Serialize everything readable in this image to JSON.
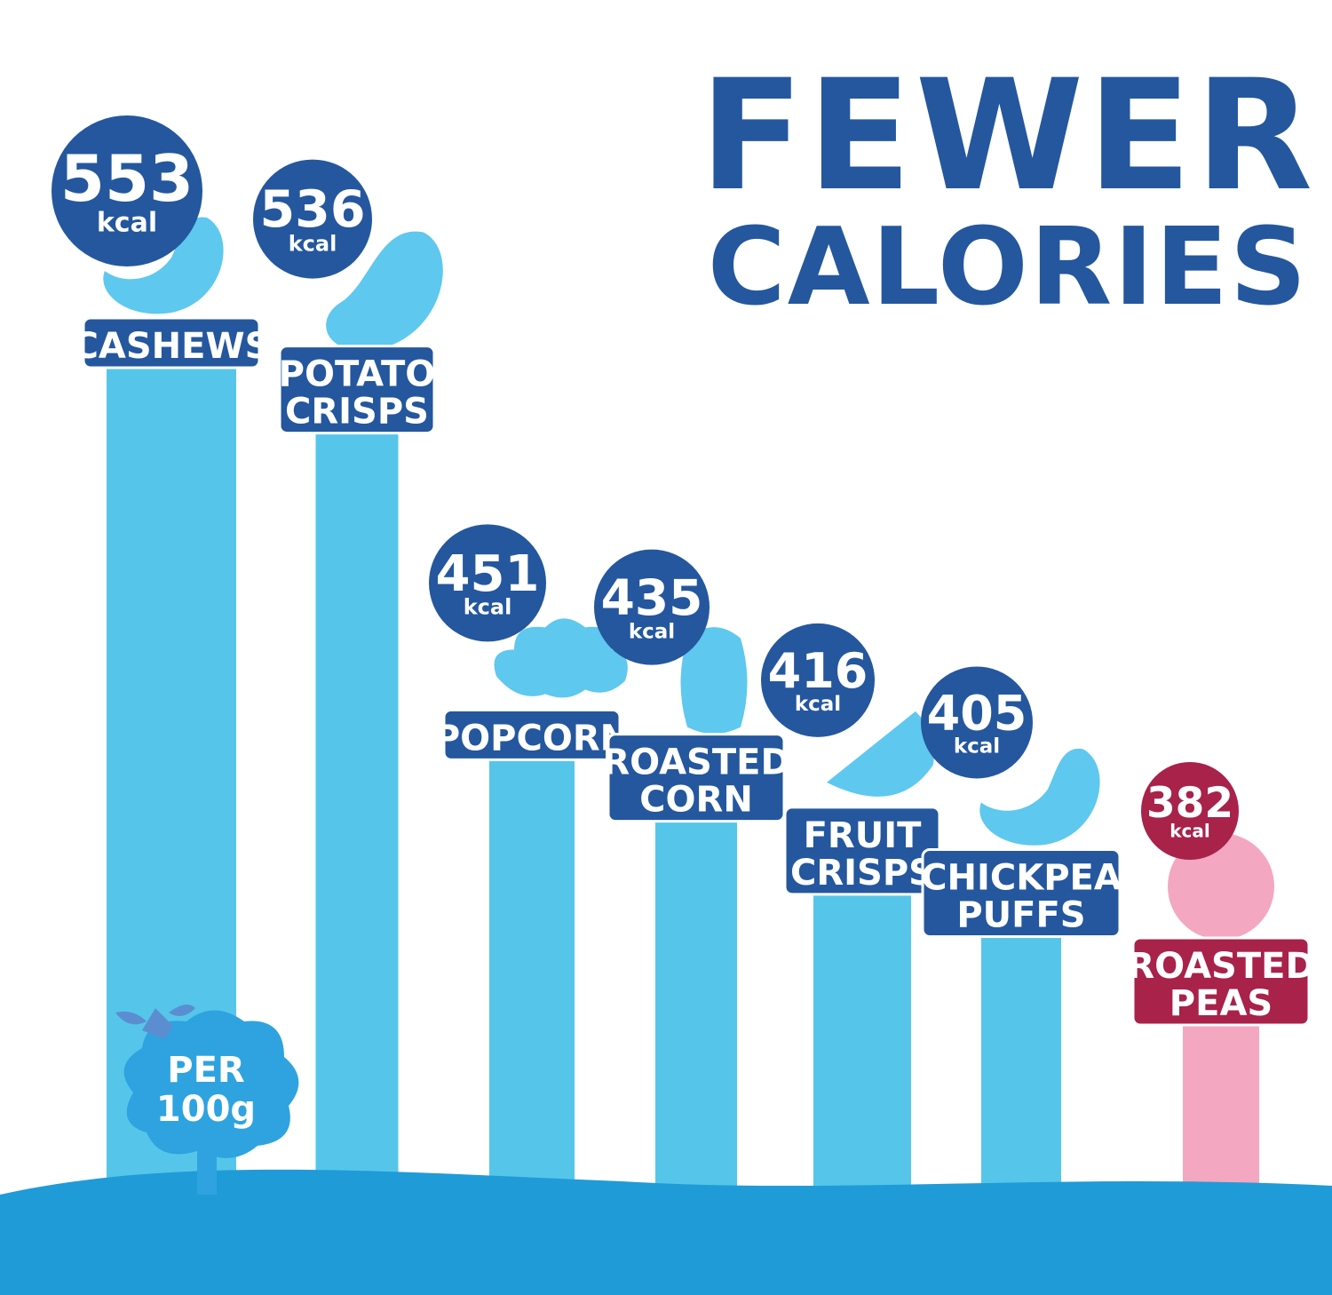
{
  "title_lines": [
    "FEWER",
    "CALORIES"
  ],
  "unit_badge": {
    "line1": "PER",
    "line2": "100g"
  },
  "colors": {
    "title": "#24579e",
    "bar": "#55c6ea",
    "bar_highlight": "#f4a7c0",
    "bubble": "#24579e",
    "bubble_highlight": "#a8224a",
    "label_bg": "#24579e",
    "label_bg_highlight": "#a8224a",
    "ground": "#1f9bd8",
    "snack_icon": "#5ec8ef",
    "snack_icon_highlight": "#f4a7c0",
    "tree": "#2ea3df"
  },
  "chart_data": {
    "type": "bar",
    "title": "FEWER CALORIES",
    "unit": "kcal",
    "categories": [
      [
        "CASHEWS"
      ],
      [
        "POTATO",
        "CRISPS"
      ],
      [
        "POPCORN"
      ],
      [
        "ROASTED",
        "CORN"
      ],
      [
        "FRUIT",
        "CRISPS"
      ],
      [
        "CHICKPEA",
        "PUFFS"
      ],
      [
        "ROASTED",
        "PEAS"
      ]
    ],
    "values": [
      553,
      536,
      451,
      435,
      416,
      405,
      382
    ],
    "value_labels": [
      "553",
      "536",
      "451",
      "435",
      "416",
      "405",
      "382"
    ],
    "unit_labels": [
      "kcal",
      "kcal",
      "kcal",
      "kcal",
      "kcal",
      "kcal",
      "kcal"
    ],
    "highlight_index": 6,
    "icons": [
      "cashew",
      "potato-crisp",
      "popcorn",
      "corn-kernel",
      "apple-slice",
      "chickpea-puff",
      "pea"
    ]
  }
}
